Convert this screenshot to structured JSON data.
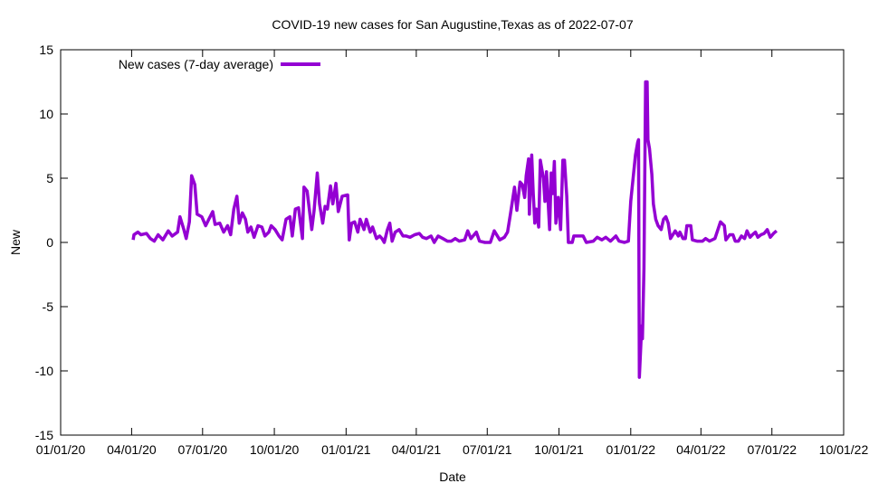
{
  "chart_data": {
    "type": "line",
    "title": "COVID-19 new cases for San Augustine,Texas as of 2022-07-07",
    "xlabel": "Date",
    "ylabel": "New",
    "x_units": "days since 2020-01-01",
    "xlim": [
      0,
      1004
    ],
    "ylim": [
      -15,
      15
    ],
    "yticks": [
      -15,
      -10,
      -5,
      0,
      5,
      10,
      15
    ],
    "xticks": [
      {
        "day": 0,
        "label": "01/01/20"
      },
      {
        "day": 91,
        "label": "04/01/20"
      },
      {
        "day": 182,
        "label": "07/01/20"
      },
      {
        "day": 274,
        "label": "10/01/20"
      },
      {
        "day": 366,
        "label": "01/01/21"
      },
      {
        "day": 456,
        "label": "04/01/21"
      },
      {
        "day": 547,
        "label": "07/01/21"
      },
      {
        "day": 639,
        "label": "10/01/21"
      },
      {
        "day": 731,
        "label": "01/01/22"
      },
      {
        "day": 821,
        "label": "04/01/22"
      },
      {
        "day": 912,
        "label": "07/01/22"
      },
      {
        "day": 1004,
        "label": "10/01/22"
      }
    ],
    "grid": false,
    "legend_position": "top-left",
    "series": [
      {
        "name": "New cases (7-day average)",
        "color": "#9400d3",
        "points": [
          [
            93,
            0.2
          ],
          [
            94,
            0.6
          ],
          [
            99,
            0.8
          ],
          [
            103,
            0.6
          ],
          [
            110,
            0.7
          ],
          [
            115,
            0.3
          ],
          [
            120,
            0.1
          ],
          [
            125,
            0.6
          ],
          [
            131,
            0.2
          ],
          [
            138,
            0.9
          ],
          [
            143,
            0.5
          ],
          [
            150,
            0.8
          ],
          [
            153,
            2.0
          ],
          [
            158,
            1.0
          ],
          [
            161,
            0.3
          ],
          [
            165,
            1.6
          ],
          [
            168,
            5.2
          ],
          [
            172,
            4.5
          ],
          [
            175,
            2.2
          ],
          [
            181,
            2.0
          ],
          [
            186,
            1.3
          ],
          [
            190,
            1.8
          ],
          [
            195,
            2.4
          ],
          [
            198,
            1.4
          ],
          [
            204,
            1.5
          ],
          [
            209,
            0.8
          ],
          [
            214,
            1.3
          ],
          [
            218,
            0.6
          ],
          [
            222,
            2.6
          ],
          [
            226,
            3.6
          ],
          [
            229,
            1.5
          ],
          [
            233,
            2.3
          ],
          [
            237,
            1.8
          ],
          [
            240,
            0.8
          ],
          [
            244,
            1.2
          ],
          [
            248,
            0.4
          ],
          [
            253,
            1.3
          ],
          [
            258,
            1.2
          ],
          [
            262,
            0.5
          ],
          [
            267,
            0.8
          ],
          [
            270,
            1.3
          ],
          [
            275,
            1.0
          ],
          [
            280,
            0.5
          ],
          [
            284,
            0.2
          ],
          [
            289,
            1.8
          ],
          [
            294,
            2.0
          ],
          [
            297,
            0.5
          ],
          [
            301,
            2.6
          ],
          [
            305,
            2.7
          ],
          [
            310,
            0.3
          ],
          [
            312,
            4.3
          ],
          [
            316,
            4.0
          ],
          [
            322,
            1.0
          ],
          [
            325,
            2.5
          ],
          [
            329,
            5.4
          ],
          [
            332,
            3.0
          ],
          [
            336,
            1.5
          ],
          [
            339,
            2.8
          ],
          [
            342,
            2.6
          ],
          [
            346,
            4.4
          ],
          [
            349,
            3.0
          ],
          [
            353,
            4.6
          ],
          [
            356,
            2.4
          ],
          [
            361,
            3.6
          ],
          [
            368,
            3.7
          ],
          [
            370,
            0.2
          ],
          [
            373,
            1.5
          ],
          [
            377,
            1.6
          ],
          [
            381,
            0.8
          ],
          [
            384,
            1.8
          ],
          [
            389,
            1.0
          ],
          [
            392,
            1.8
          ],
          [
            397,
            0.8
          ],
          [
            400,
            1.2
          ],
          [
            405,
            0.3
          ],
          [
            409,
            0.5
          ],
          [
            412,
            0.3
          ],
          [
            415,
            0.0
          ],
          [
            419,
            1.0
          ],
          [
            422,
            1.5
          ],
          [
            425,
            0.1
          ],
          [
            429,
            0.8
          ],
          [
            434,
            1.0
          ],
          [
            439,
            0.5
          ],
          [
            443,
            0.5
          ],
          [
            448,
            0.4
          ],
          [
            454,
            0.6
          ],
          [
            460,
            0.7
          ],
          [
            464,
            0.4
          ],
          [
            469,
            0.3
          ],
          [
            475,
            0.5
          ],
          [
            479,
            0.0
          ],
          [
            484,
            0.5
          ],
          [
            490,
            0.3
          ],
          [
            496,
            0.1
          ],
          [
            501,
            0.1
          ],
          [
            506,
            0.3
          ],
          [
            511,
            0.1
          ],
          [
            518,
            0.2
          ],
          [
            522,
            0.9
          ],
          [
            526,
            0.3
          ],
          [
            533,
            0.8
          ],
          [
            537,
            0.1
          ],
          [
            544,
            0.0
          ],
          [
            551,
            0.0
          ],
          [
            556,
            0.9
          ],
          [
            563,
            0.2
          ],
          [
            569,
            0.4
          ],
          [
            573,
            0.8
          ],
          [
            577,
            2.3
          ],
          [
            582,
            4.3
          ],
          [
            585,
            2.5
          ],
          [
            589,
            4.7
          ],
          [
            592,
            4.5
          ],
          [
            595,
            3.5
          ],
          [
            597,
            5.2
          ],
          [
            600,
            6.5
          ],
          [
            601,
            2.2
          ],
          [
            604,
            6.8
          ],
          [
            606,
            3.8
          ],
          [
            608,
            1.5
          ],
          [
            610,
            2.6
          ],
          [
            613,
            1.2
          ],
          [
            615,
            6.4
          ],
          [
            619,
            5.0
          ],
          [
            621,
            3.2
          ],
          [
            623,
            5.5
          ],
          [
            627,
            1.0
          ],
          [
            629,
            5.4
          ],
          [
            631,
            3.8
          ],
          [
            633,
            6.3
          ],
          [
            635,
            1.5
          ],
          [
            638,
            3.5
          ],
          [
            641,
            1.0
          ],
          [
            644,
            6.4
          ],
          [
            646,
            6.4
          ],
          [
            649,
            3.6
          ],
          [
            651,
            0.0
          ],
          [
            656,
            0.0
          ],
          [
            658,
            0.5
          ],
          [
            670,
            0.5
          ],
          [
            674,
            0.0
          ],
          [
            683,
            0.1
          ],
          [
            688,
            0.4
          ],
          [
            694,
            0.2
          ],
          [
            699,
            0.4
          ],
          [
            705,
            0.1
          ],
          [
            712,
            0.5
          ],
          [
            716,
            0.1
          ],
          [
            723,
            0.0
          ],
          [
            728,
            0.1
          ],
          [
            731,
            3.2
          ],
          [
            734,
            5.0
          ],
          [
            737,
            6.8
          ],
          [
            740,
            7.8
          ],
          [
            741,
            8.0
          ],
          [
            742,
            -10.5
          ],
          [
            745,
            -6.5
          ],
          [
            746,
            -7.5
          ],
          [
            748,
            -2.0
          ],
          [
            750,
            12.5
          ],
          [
            752,
            12.5
          ],
          [
            753,
            8.0
          ],
          [
            755,
            7.3
          ],
          [
            758,
            5.3
          ],
          [
            760,
            3.0
          ],
          [
            763,
            1.8
          ],
          [
            766,
            1.3
          ],
          [
            770,
            1.0
          ],
          [
            773,
            1.8
          ],
          [
            776,
            2.0
          ],
          [
            779,
            1.5
          ],
          [
            782,
            0.3
          ],
          [
            786,
            0.7
          ],
          [
            788,
            0.9
          ],
          [
            792,
            0.5
          ],
          [
            794,
            0.8
          ],
          [
            798,
            0.3
          ],
          [
            801,
            0.3
          ],
          [
            803,
            1.3
          ],
          [
            808,
            1.3
          ],
          [
            810,
            0.2
          ],
          [
            816,
            0.1
          ],
          [
            823,
            0.1
          ],
          [
            827,
            0.3
          ],
          [
            832,
            0.1
          ],
          [
            839,
            0.3
          ],
          [
            846,
            1.6
          ],
          [
            851,
            1.3
          ],
          [
            853,
            0.2
          ],
          [
            858,
            0.6
          ],
          [
            862,
            0.6
          ],
          [
            865,
            0.1
          ],
          [
            869,
            0.1
          ],
          [
            873,
            0.5
          ],
          [
            877,
            0.3
          ],
          [
            880,
            0.9
          ],
          [
            884,
            0.4
          ],
          [
            887,
            0.6
          ],
          [
            891,
            0.8
          ],
          [
            894,
            0.4
          ],
          [
            898,
            0.6
          ],
          [
            902,
            0.7
          ],
          [
            906,
            1.0
          ],
          [
            910,
            0.4
          ],
          [
            914,
            0.7
          ],
          [
            918,
            0.9
          ]
        ]
      }
    ]
  }
}
